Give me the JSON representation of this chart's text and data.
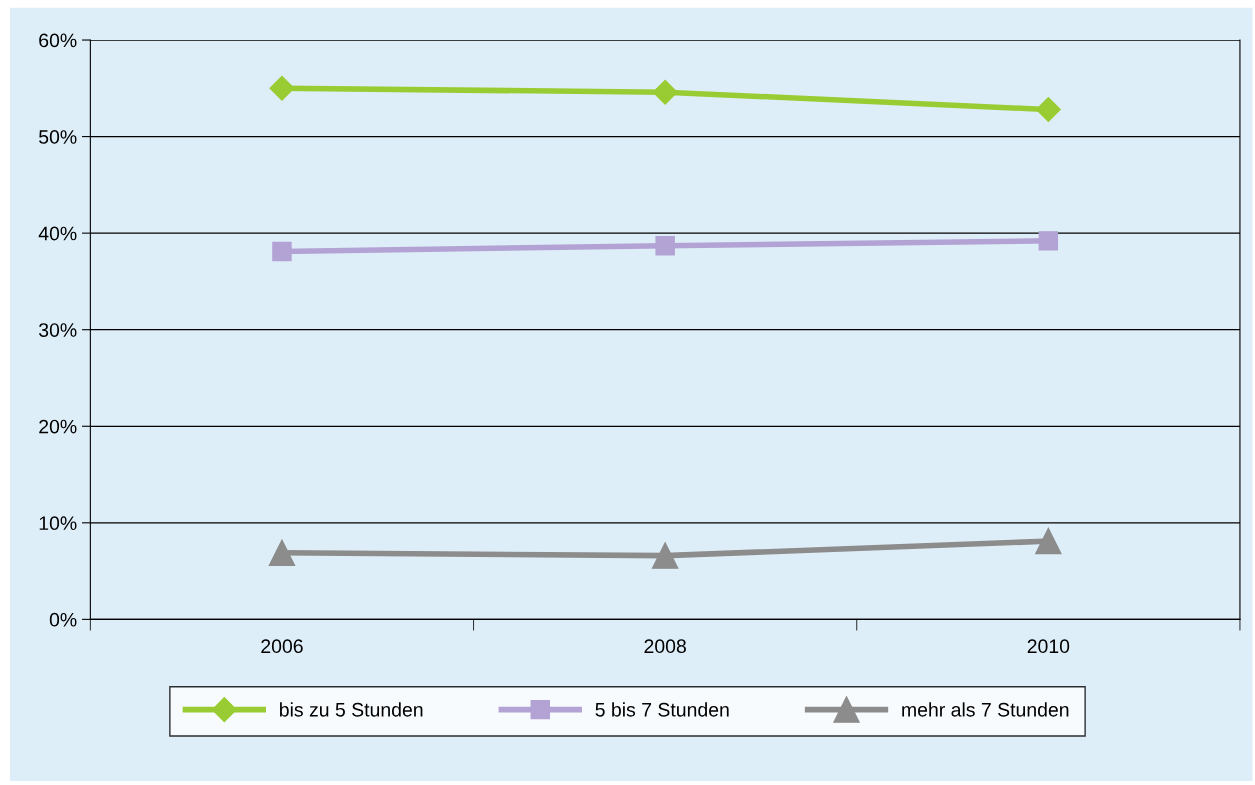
{
  "chart_data": {
    "type": "line",
    "categories": [
      "2006",
      "2008",
      "2010"
    ],
    "series": [
      {
        "name": "bis zu 5 Stunden",
        "color": "#99cc33",
        "marker": "diamond",
        "values": [
          55.0,
          54.6,
          52.8
        ]
      },
      {
        "name": "5 bis 7 Stunden",
        "color": "#b3a2d4",
        "marker": "square",
        "values": [
          38.1,
          38.7,
          39.2
        ]
      },
      {
        "name": "mehr als 7 Stunden",
        "color": "#8c8c8c",
        "marker": "triangle",
        "values": [
          6.9,
          6.6,
          8.1
        ]
      }
    ],
    "ylim": [
      0,
      60
    ],
    "yticks": [
      {
        "value": 0,
        "label": "0%"
      },
      {
        "value": 10,
        "label": "10%"
      },
      {
        "value": 20,
        "label": "20%"
      },
      {
        "value": 30,
        "label": "30%"
      },
      {
        "value": 40,
        "label": "40%"
      },
      {
        "value": 50,
        "label": "50%"
      },
      {
        "value": 60,
        "label": "60%"
      }
    ],
    "grid": "y",
    "legend": "bottom",
    "line_style": "solid"
  }
}
